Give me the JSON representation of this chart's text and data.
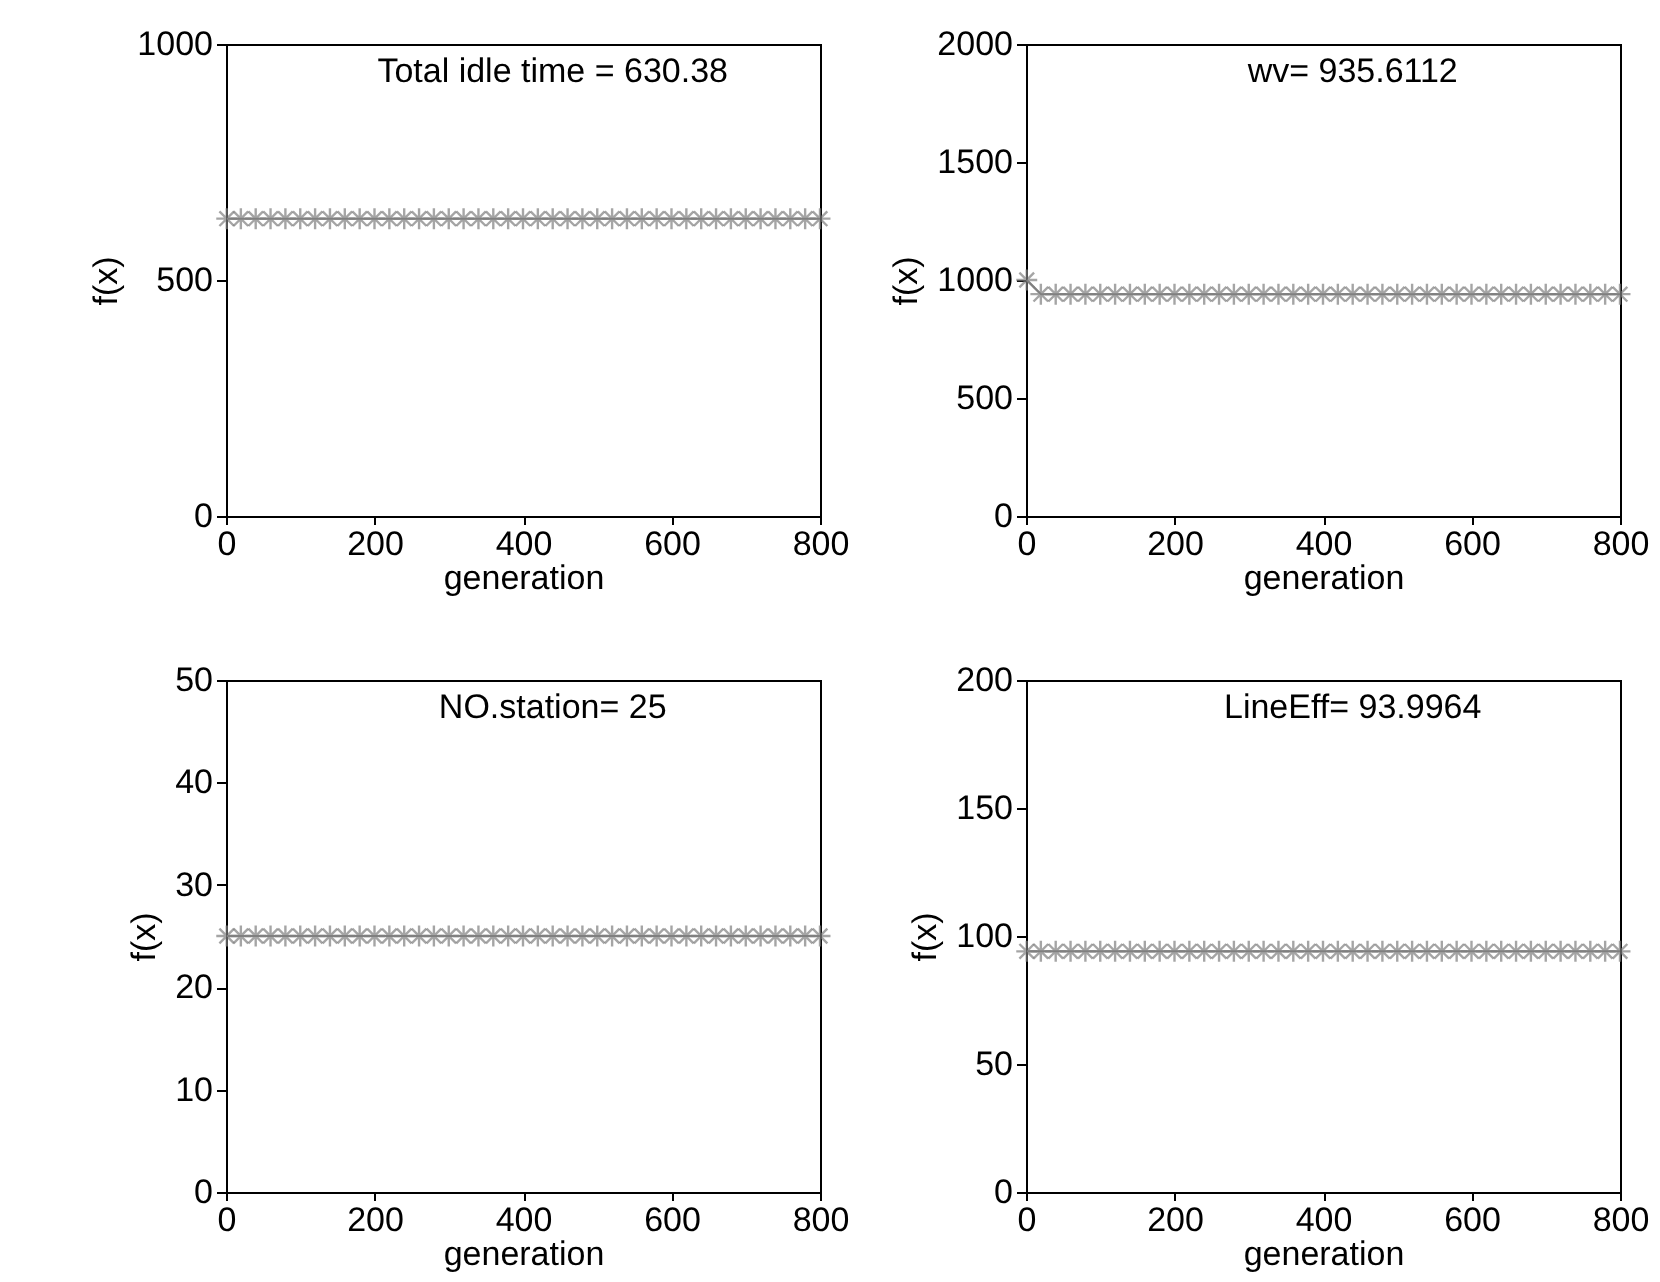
{
  "chart_data": [
    {
      "type": "line",
      "xlabel": "generation",
      "ylabel": "f(x)",
      "annotations": [
        "Total idle time = 630.38"
      ],
      "xlim": [
        0,
        800
      ],
      "xticks": [
        0,
        200,
        400,
        600,
        800
      ],
      "ylim": [
        0,
        1000
      ],
      "yticks": [
        0,
        500,
        1000
      ],
      "marker": "cross",
      "line_style": "solid",
      "series": [
        {
          "color": "#808080",
          "x": [
            1,
            20,
            40,
            60,
            80,
            100,
            120,
            140,
            160,
            180,
            200,
            220,
            240,
            260,
            280,
            300,
            320,
            340,
            360,
            380,
            400,
            420,
            440,
            460,
            480,
            500,
            520,
            540,
            560,
            580,
            600,
            620,
            640,
            660,
            680,
            700,
            720,
            740,
            760,
            780,
            800
          ],
          "values": [
            630,
            630,
            630,
            630,
            630,
            630,
            630,
            630,
            630,
            630,
            630,
            630,
            630,
            630,
            630,
            630,
            630,
            630,
            630,
            630,
            630,
            630,
            630,
            630,
            630,
            630,
            630,
            630,
            630,
            630,
            630,
            630,
            630,
            630,
            630,
            630,
            630,
            630,
            630,
            630,
            630
          ]
        }
      ]
    },
    {
      "type": "line",
      "xlabel": "generation",
      "ylabel": "f(x)",
      "annotations": [
        "wv= 935.6112"
      ],
      "xlim": [
        0,
        800
      ],
      "xticks": [
        0,
        200,
        400,
        600,
        800
      ],
      "ylim": [
        0,
        2000
      ],
      "yticks": [
        0,
        500,
        1000,
        1500,
        2000
      ],
      "marker": "cross",
      "line_style": "solid",
      "series": [
        {
          "color": "#808080",
          "x": [
            1,
            20,
            40,
            60,
            80,
            100,
            120,
            140,
            160,
            180,
            200,
            220,
            240,
            260,
            280,
            300,
            320,
            340,
            360,
            380,
            400,
            420,
            440,
            460,
            480,
            500,
            520,
            540,
            560,
            580,
            600,
            620,
            640,
            660,
            680,
            700,
            720,
            740,
            760,
            780,
            800
          ],
          "values": [
            1000,
            940,
            940,
            940,
            940,
            940,
            940,
            940,
            940,
            940,
            940,
            940,
            940,
            940,
            940,
            940,
            940,
            940,
            940,
            940,
            940,
            940,
            940,
            940,
            940,
            940,
            940,
            940,
            940,
            940,
            940,
            940,
            940,
            940,
            940,
            940,
            940,
            940,
            940,
            940,
            940
          ]
        }
      ]
    },
    {
      "type": "line",
      "xlabel": "generation",
      "ylabel": "f(x)",
      "annotations": [
        "NO.station= 25"
      ],
      "xlim": [
        0,
        800
      ],
      "xticks": [
        0,
        200,
        400,
        600,
        800
      ],
      "ylim": [
        0,
        50
      ],
      "yticks": [
        0,
        10,
        20,
        30,
        40,
        50
      ],
      "marker": "cross",
      "line_style": "solid",
      "series": [
        {
          "color": "#808080",
          "x": [
            1,
            20,
            40,
            60,
            80,
            100,
            120,
            140,
            160,
            180,
            200,
            220,
            240,
            260,
            280,
            300,
            320,
            340,
            360,
            380,
            400,
            420,
            440,
            460,
            480,
            500,
            520,
            540,
            560,
            580,
            600,
            620,
            640,
            660,
            680,
            700,
            720,
            740,
            760,
            780,
            800
          ],
          "values": [
            25,
            25,
            25,
            25,
            25,
            25,
            25,
            25,
            25,
            25,
            25,
            25,
            25,
            25,
            25,
            25,
            25,
            25,
            25,
            25,
            25,
            25,
            25,
            25,
            25,
            25,
            25,
            25,
            25,
            25,
            25,
            25,
            25,
            25,
            25,
            25,
            25,
            25,
            25,
            25,
            25
          ]
        }
      ]
    },
    {
      "type": "line",
      "xlabel": "generation",
      "ylabel": "f(x)",
      "annotations": [
        "LineEff= 93.9964"
      ],
      "xlim": [
        0,
        800
      ],
      "xticks": [
        0,
        200,
        400,
        600,
        800
      ],
      "ylim": [
        0,
        200
      ],
      "yticks": [
        0,
        50,
        100,
        150,
        200
      ],
      "marker": "cross",
      "line_style": "solid",
      "series": [
        {
          "color": "#808080",
          "x": [
            1,
            20,
            40,
            60,
            80,
            100,
            120,
            140,
            160,
            180,
            200,
            220,
            240,
            260,
            280,
            300,
            320,
            340,
            360,
            380,
            400,
            420,
            440,
            460,
            480,
            500,
            520,
            540,
            560,
            580,
            600,
            620,
            640,
            660,
            680,
            700,
            720,
            740,
            760,
            780,
            800
          ],
          "values": [
            94,
            94,
            94,
            94,
            94,
            94,
            94,
            94,
            94,
            94,
            94,
            94,
            94,
            94,
            94,
            94,
            94,
            94,
            94,
            94,
            94,
            94,
            94,
            94,
            94,
            94,
            94,
            94,
            94,
            94,
            94,
            94,
            94,
            94,
            94,
            94,
            94,
            94,
            94,
            94,
            94
          ]
        }
      ]
    }
  ]
}
